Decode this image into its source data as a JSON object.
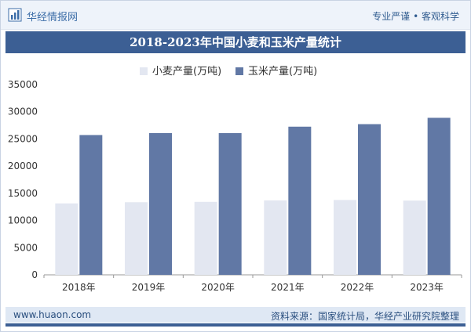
{
  "header": {
    "brand": "华经情报网",
    "slogan": "专业严谨 • 客观科学"
  },
  "footer": {
    "website": "www.huaon.com",
    "source": "资料来源：国家统计局，华经产业研究院整理"
  },
  "colors": {
    "accent": "#3c5f94",
    "wheat": "#e3e7f1",
    "corn": "#6178a5"
  },
  "chart_data": {
    "type": "bar",
    "title": "2018-2023年中国小麦和玉米产量统计",
    "categories": [
      "2018年",
      "2019年",
      "2020年",
      "2021年",
      "2022年",
      "2023年"
    ],
    "series": [
      {
        "name": "小麦产量(万吨)",
        "values": [
          13144,
          13359,
          13425,
          13695,
          13772,
          13659
        ]
      },
      {
        "name": "玉米产量(万吨)",
        "values": [
          25717,
          26078,
          26067,
          27255,
          27720,
          28884
        ]
      }
    ],
    "yticks": [
      "0",
      "5000",
      "10000",
      "15000",
      "20000",
      "25000",
      "30000",
      "35000"
    ],
    "ylim": [
      0,
      35000
    ],
    "xlabel": "",
    "ylabel": "",
    "legend": "top-left"
  }
}
